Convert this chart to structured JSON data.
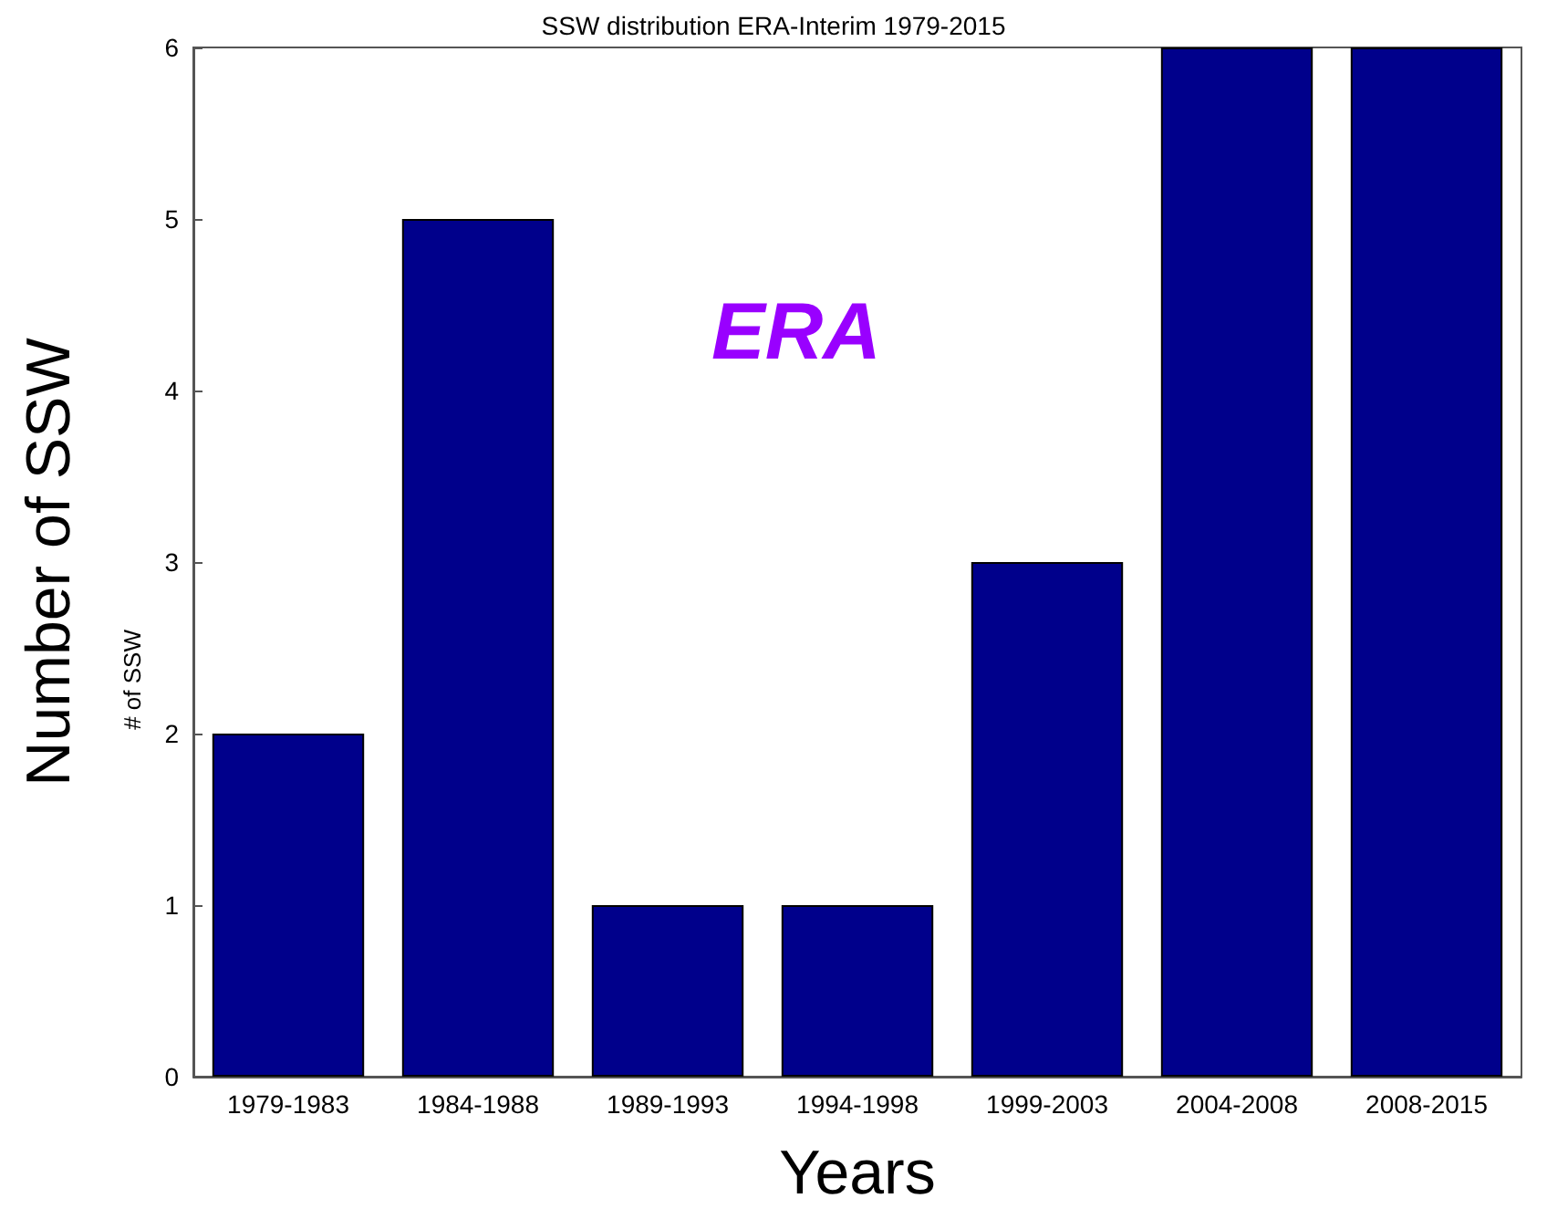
{
  "chart_data": {
    "type": "bar",
    "title": "SSW distribution ERA-Interim 1979-2015",
    "xlabel": "Years",
    "ylabel": "Number of SSW",
    "annotations": [
      "ERA",
      "# of SSW"
    ],
    "categories": [
      "1979-1983",
      "1984-1988",
      "1989-1993",
      "1994-1998",
      "1999-2003",
      "2004-2008",
      "2008-2015"
    ],
    "values": [
      2,
      5,
      1,
      1,
      3,
      6,
      6
    ],
    "color": "#00008b",
    "ylim": [
      0,
      6
    ],
    "yticks": [
      0,
      1,
      2,
      3,
      4,
      5,
      6
    ],
    "grid": false
  }
}
